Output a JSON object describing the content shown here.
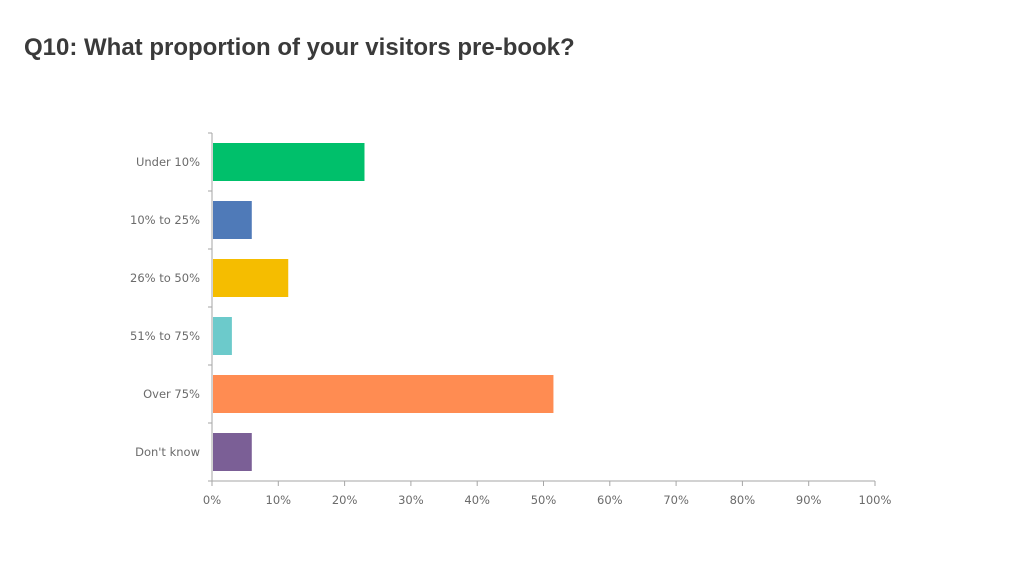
{
  "slide": {
    "title": "Q10: What proportion of your visitors pre-book?"
  },
  "chart_data": {
    "type": "bar",
    "orientation": "horizontal",
    "categories": [
      "Under 10%",
      "10% to 25%",
      "26% to 50%",
      "51% to 75%",
      "Over 75%",
      "Don't know"
    ],
    "values": [
      23,
      6,
      11.5,
      3,
      51.5,
      6
    ],
    "colors": [
      "#00c06b",
      "#4f7ab8",
      "#f5bd00",
      "#6ccacb",
      "#ff8c52",
      "#7b5f96"
    ],
    "xlim": [
      0,
      100
    ],
    "xticks": [
      "0%",
      "10%",
      "20%",
      "30%",
      "40%",
      "50%",
      "60%",
      "70%",
      "80%",
      "90%",
      "100%"
    ],
    "grid": false,
    "legend": "none"
  }
}
